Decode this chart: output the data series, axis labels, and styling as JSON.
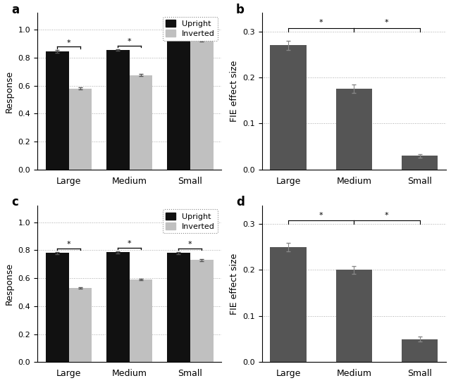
{
  "panel_a": {
    "upright": [
      0.845,
      0.855,
      0.95
    ],
    "inverted": [
      0.58,
      0.675,
      0.92
    ],
    "upright_err": [
      0.008,
      0.007,
      0.005
    ],
    "inverted_err": [
      0.008,
      0.007,
      0.005
    ],
    "categories": [
      "Large",
      "Medium",
      "Small"
    ],
    "ylabel": "Response",
    "ylim": [
      0,
      1.12
    ],
    "yticks": [
      0,
      0.2,
      0.4,
      0.6,
      0.8,
      1.0
    ],
    "label": "a"
  },
  "panel_b": {
    "values": [
      0.27,
      0.175,
      0.03
    ],
    "errors": [
      0.01,
      0.009,
      0.004
    ],
    "categories": [
      "Large",
      "Medium",
      "Small"
    ],
    "ylabel": "FIE effect size",
    "ylim": [
      0,
      0.34
    ],
    "yticks": [
      0,
      0.1,
      0.2,
      0.3
    ],
    "label": "b"
  },
  "panel_c": {
    "upright": [
      0.78,
      0.785,
      0.78
    ],
    "inverted": [
      0.53,
      0.59,
      0.73
    ],
    "upright_err": [
      0.007,
      0.007,
      0.007
    ],
    "inverted_err": [
      0.007,
      0.007,
      0.007
    ],
    "categories": [
      "Large",
      "Medium",
      "Small"
    ],
    "ylabel": "Response",
    "ylim": [
      0,
      1.12
    ],
    "yticks": [
      0,
      0.2,
      0.4,
      0.6,
      0.8,
      1.0
    ],
    "label": "c"
  },
  "panel_d": {
    "values": [
      0.25,
      0.2,
      0.05
    ],
    "errors": [
      0.009,
      0.008,
      0.005
    ],
    "categories": [
      "Large",
      "Medium",
      "Small"
    ],
    "ylabel": "FIE effect size",
    "ylim": [
      0,
      0.34
    ],
    "yticks": [
      0,
      0.1,
      0.2,
      0.3
    ],
    "label": "d"
  },
  "upright_color": "#111111",
  "inverted_color": "#c0c0c0",
  "bar_effect_color": "#555555",
  "bar_width": 0.38,
  "background_color": "#ffffff"
}
